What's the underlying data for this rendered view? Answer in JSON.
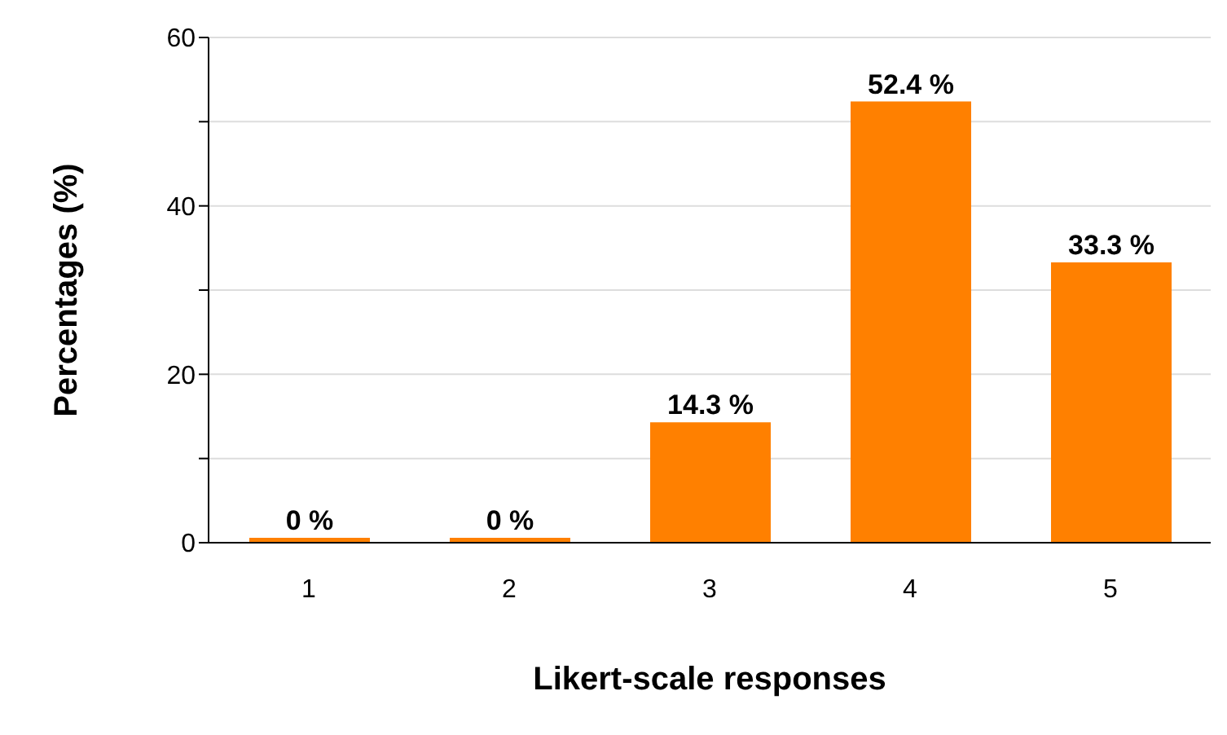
{
  "chart_data": {
    "type": "bar",
    "xlabel": "Likert-scale responses",
    "ylabel": "Percentages (%)",
    "categories": [
      "1",
      "2",
      "3",
      "4",
      "5"
    ],
    "values": [
      0,
      0,
      14.3,
      52.4,
      33.3
    ],
    "value_labels": [
      "0 %",
      "0 %",
      "14.3 %",
      "52.4 %",
      "33.3 %"
    ],
    "color": "#ff8000",
    "ylim": [
      0,
      60
    ],
    "yticks": [
      0,
      {
        "value": 10,
        "label": null
      },
      20,
      {
        "value": 30,
        "label": null
      },
      40,
      {
        "value": 50,
        "label": null
      },
      60
    ],
    "grid": "y",
    "legend": false
  }
}
